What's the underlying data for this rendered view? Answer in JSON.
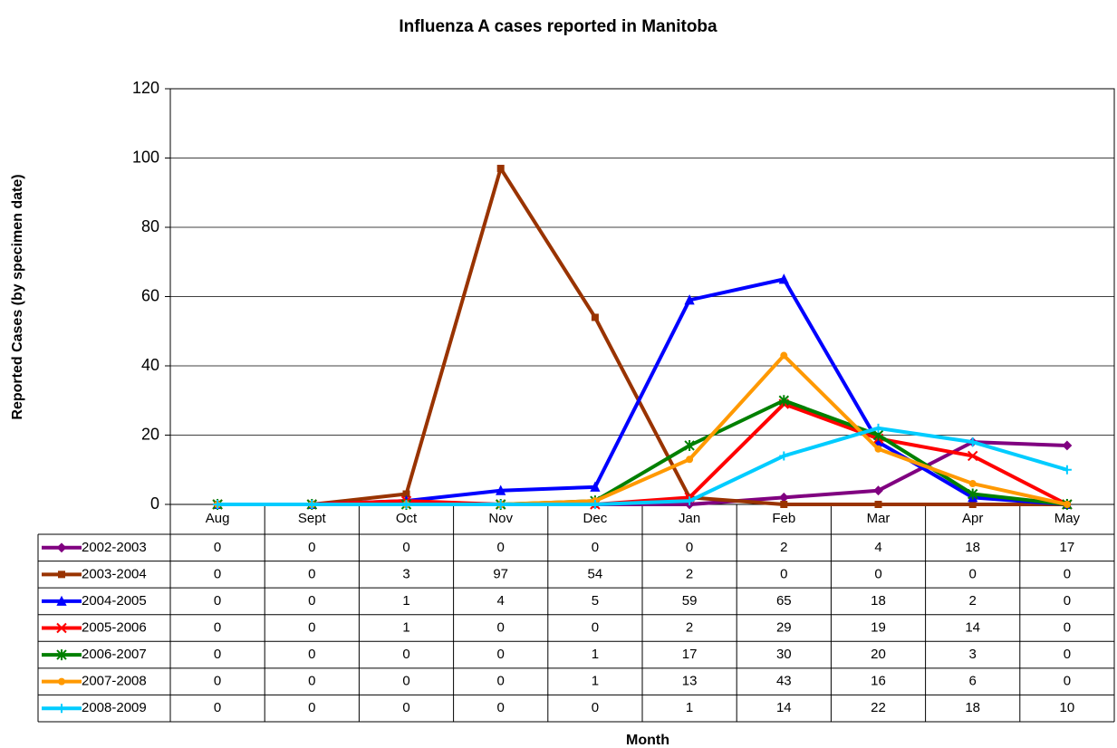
{
  "chart_data": {
    "type": "line",
    "title": "Influenza A cases reported in Manitoba",
    "x_label": "Month",
    "y_label": "Reported Cases (by specimen date)",
    "categories": [
      "Aug",
      "Sept",
      "Oct",
      "Nov",
      "Dec",
      "Jan",
      "Feb",
      "Mar",
      "Apr",
      "May"
    ],
    "series": [
      {
        "name": "2002-2003",
        "color": "#800080",
        "values": [
          0,
          0,
          0,
          0,
          0,
          0,
          2,
          4,
          18,
          17
        ]
      },
      {
        "name": "2003-2004",
        "color": "#993300",
        "values": [
          0,
          0,
          3,
          97,
          54,
          2,
          0,
          0,
          0,
          0
        ]
      },
      {
        "name": "2004-2005",
        "color": "#0000ff",
        "values": [
          0,
          0,
          1,
          4,
          5,
          59,
          65,
          18,
          2,
          0
        ]
      },
      {
        "name": "2005-2006",
        "color": "#ff0000",
        "values": [
          0,
          0,
          1,
          0,
          0,
          2,
          29,
          19,
          14,
          0
        ]
      },
      {
        "name": "2006-2007",
        "color": "#008000",
        "values": [
          0,
          0,
          0,
          0,
          1,
          17,
          30,
          20,
          3,
          0
        ]
      },
      {
        "name": "2007-2008",
        "color": "#ff9900",
        "values": [
          0,
          0,
          0,
          0,
          1,
          13,
          43,
          16,
          6,
          0
        ]
      },
      {
        "name": "2008-2009",
        "color": "#00ccff",
        "values": [
          0,
          0,
          0,
          0,
          0,
          1,
          14,
          22,
          18,
          10
        ]
      }
    ],
    "ylim": [
      0,
      120
    ],
    "yticks": [
      0,
      20,
      40,
      60,
      80,
      100,
      120
    ],
    "grid": true
  }
}
